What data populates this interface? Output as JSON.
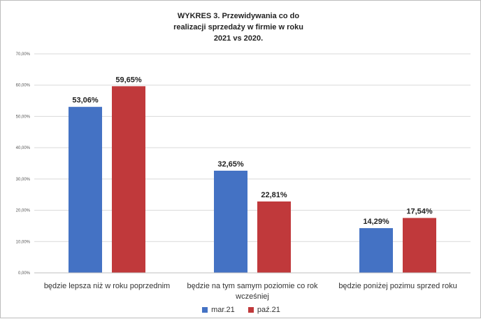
{
  "chart_data": {
    "type": "bar",
    "title_lines": [
      "WYKRES 3. Przewidywania co do",
      "realizacji sprzedaży w firmie w roku",
      "2021 vs 2020."
    ],
    "categories": [
      [
        "będzie lepsza niż w roku poprzednim"
      ],
      [
        "będzie na tym samym poziomie co rok",
        "wcześniej"
      ],
      [
        "będzie poniżej pozimu sprzed roku"
      ]
    ],
    "series": [
      {
        "name": "mar.21",
        "color": "#4472C4",
        "values": [
          53.06,
          32.65,
          14.29
        ],
        "labels": [
          "53,06%",
          "32,65%",
          "14,29%"
        ]
      },
      {
        "name": "paź.21",
        "color": "#C0393B",
        "values": [
          59.65,
          22.81,
          17.54
        ],
        "labels": [
          "59,65%",
          "22,81%",
          "17,54%"
        ]
      }
    ],
    "ylim": [
      0,
      70
    ],
    "yticks": [
      "0,00%",
      "10,00%",
      "20,00%",
      "30,00%",
      "40,00%",
      "50,00%",
      "60,00%",
      "70,00%"
    ],
    "grid": true,
    "legend_position": "bottom"
  }
}
